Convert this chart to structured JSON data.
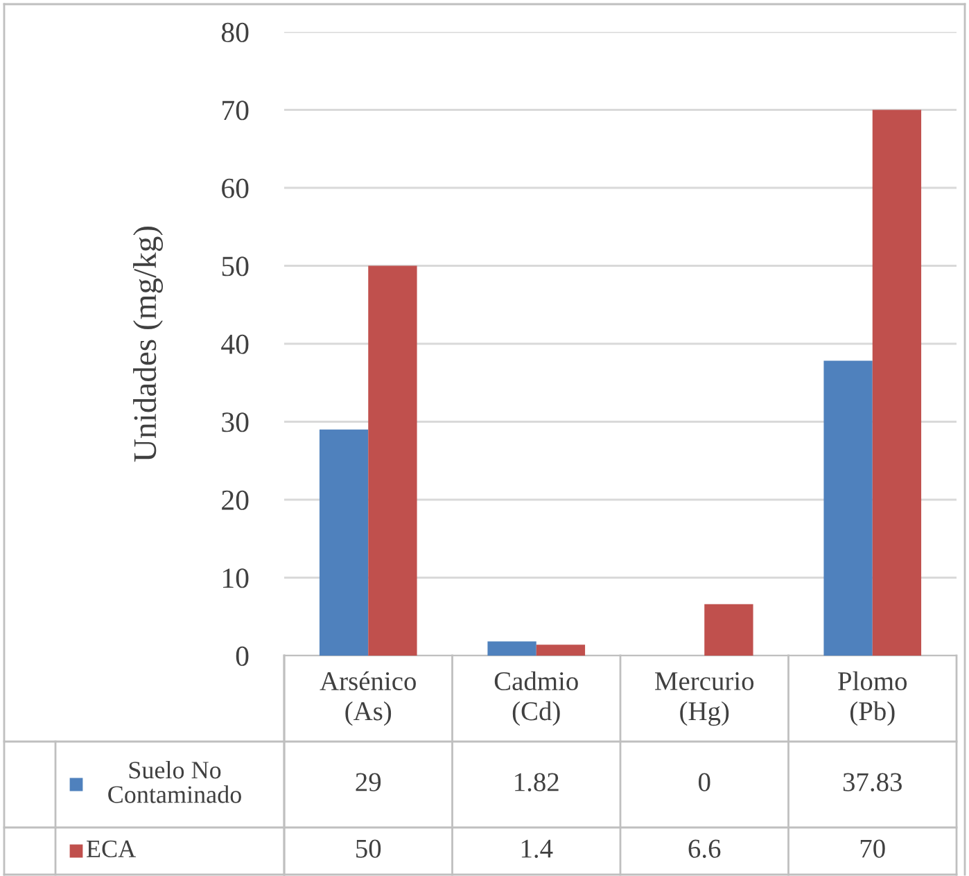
{
  "chart_data": {
    "type": "bar",
    "ylabel": "Unidades (mg/kg)",
    "categories": [
      "Arsénico (As)",
      "Cadmio (Cd)",
      "Mercurio (Hg)",
      "Plomo (Pb)"
    ],
    "series": [
      {
        "name": "Suelo No Contaminado",
        "color": "#4f81bd",
        "values": [
          29,
          1.82,
          0,
          37.83
        ]
      },
      {
        "name": "ECA",
        "color": "#c0504d",
        "values": [
          50,
          1.4,
          6.6,
          70
        ]
      }
    ],
    "ylim": [
      0,
      80
    ],
    "yticks": [
      0,
      10,
      20,
      30,
      40,
      50,
      60,
      70,
      80
    ],
    "grid": "y",
    "legend": "bottom",
    "data_labels": true
  }
}
